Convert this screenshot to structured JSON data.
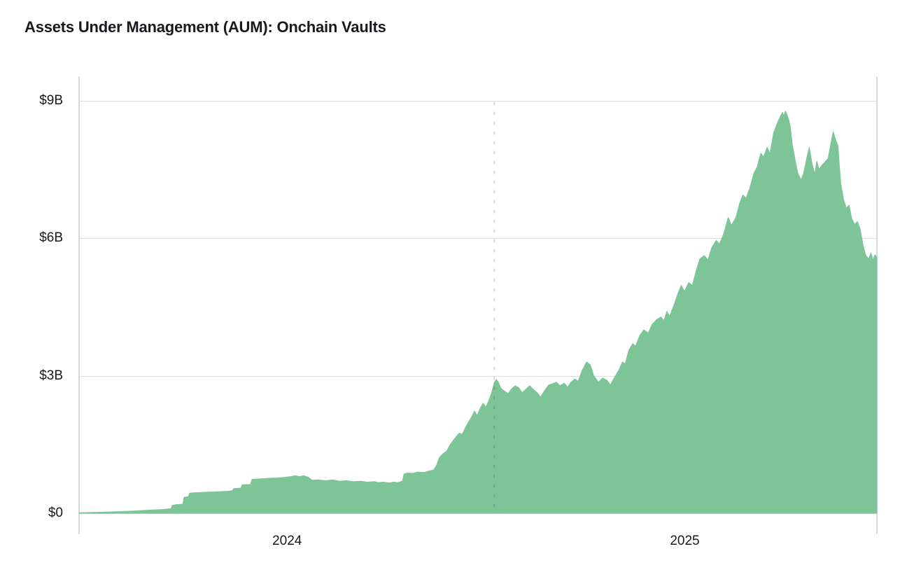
{
  "chart_data": {
    "type": "area",
    "title": "Assets Under Management (AUM): Onchain Vaults",
    "unit": "USD billions",
    "grid": "horizontal",
    "legend": "none",
    "x_axis": {
      "type": "time-decimal-years",
      "domain": [
        2023.977,
        2025.983
      ],
      "tick_labels": [
        "2024",
        "2025"
      ],
      "tick_positions": [
        2024.5,
        2025.5
      ]
    },
    "y_axis": {
      "domain": [
        0,
        9
      ],
      "tick_labels": [
        "$0",
        "$3B",
        "$6B",
        "$9B"
      ],
      "tick_values": [
        0,
        3,
        6,
        9
      ]
    },
    "reference_line": {
      "x": 2025.021,
      "style": "dashed-vertical"
    },
    "colors": {
      "area_fill": "#7dc497",
      "grid_line": "#dcdee0",
      "axis_line": "#d7d9db",
      "reference_line": "rgba(60,72,66,0.25)",
      "text": "#17191c"
    },
    "series": [
      {
        "name": "AUM",
        "points": [
          [
            2023.977,
            0.01
          ],
          [
            2024.012,
            0.02
          ],
          [
            2024.06,
            0.03
          ],
          [
            2024.113,
            0.05
          ],
          [
            2024.157,
            0.07
          ],
          [
            2024.183,
            0.08
          ],
          [
            2024.208,
            0.1
          ],
          [
            2024.211,
            0.17
          ],
          [
            2024.222,
            0.19
          ],
          [
            2024.238,
            0.2
          ],
          [
            2024.241,
            0.35
          ],
          [
            2024.252,
            0.36
          ],
          [
            2024.255,
            0.44
          ],
          [
            2024.271,
            0.45
          ],
          [
            2024.297,
            0.46
          ],
          [
            2024.324,
            0.47
          ],
          [
            2024.35,
            0.48
          ],
          [
            2024.362,
            0.49
          ],
          [
            2024.366,
            0.54
          ],
          [
            2024.384,
            0.55
          ],
          [
            2024.387,
            0.62
          ],
          [
            2024.408,
            0.63
          ],
          [
            2024.412,
            0.74
          ],
          [
            2024.429,
            0.75
          ],
          [
            2024.447,
            0.76
          ],
          [
            2024.473,
            0.77
          ],
          [
            2024.491,
            0.78
          ],
          [
            2024.509,
            0.8
          ],
          [
            2024.521,
            0.82
          ],
          [
            2024.531,
            0.8
          ],
          [
            2024.542,
            0.82
          ],
          [
            2024.553,
            0.79
          ],
          [
            2024.563,
            0.72
          ],
          [
            2024.579,
            0.73
          ],
          [
            2024.597,
            0.71
          ],
          [
            2024.614,
            0.73
          ],
          [
            2024.632,
            0.7
          ],
          [
            2024.649,
            0.71
          ],
          [
            2024.667,
            0.69
          ],
          [
            2024.685,
            0.7
          ],
          [
            2024.702,
            0.68
          ],
          [
            2024.72,
            0.69
          ],
          [
            2024.729,
            0.67
          ],
          [
            2024.743,
            0.68
          ],
          [
            2024.757,
            0.66
          ],
          [
            2024.767,
            0.68
          ],
          [
            2024.778,
            0.67
          ],
          [
            2024.79,
            0.7
          ],
          [
            2024.794,
            0.86
          ],
          [
            2024.804,
            0.88
          ],
          [
            2024.817,
            0.87
          ],
          [
            2024.829,
            0.9
          ],
          [
            2024.843,
            0.89
          ],
          [
            2024.857,
            0.92
          ],
          [
            2024.869,
            0.95
          ],
          [
            2024.876,
            1.05
          ],
          [
            2024.883,
            1.22
          ],
          [
            2024.892,
            1.3
          ],
          [
            2024.901,
            1.35
          ],
          [
            2024.91,
            1.5
          ],
          [
            2024.919,
            1.6
          ],
          [
            2024.926,
            1.68
          ],
          [
            2024.933,
            1.75
          ],
          [
            2024.94,
            1.72
          ],
          [
            2024.949,
            1.88
          ],
          [
            2024.957,
            2.0
          ],
          [
            2024.964,
            2.1
          ],
          [
            2024.971,
            2.23
          ],
          [
            2024.978,
            2.13
          ],
          [
            2024.986,
            2.3
          ],
          [
            2024.993,
            2.4
          ],
          [
            2025.0,
            2.32
          ],
          [
            2025.007,
            2.45
          ],
          [
            2025.014,
            2.62
          ],
          [
            2025.021,
            2.85
          ],
          [
            2025.026,
            2.92
          ],
          [
            2025.031,
            2.86
          ],
          [
            2025.038,
            2.72
          ],
          [
            2025.047,
            2.66
          ],
          [
            2025.056,
            2.61
          ],
          [
            2025.065,
            2.72
          ],
          [
            2025.074,
            2.78
          ],
          [
            2025.082,
            2.74
          ],
          [
            2025.091,
            2.63
          ],
          [
            2025.1,
            2.7
          ],
          [
            2025.11,
            2.78
          ],
          [
            2025.119,
            2.7
          ],
          [
            2025.13,
            2.62
          ],
          [
            2025.137,
            2.53
          ],
          [
            2025.147,
            2.67
          ],
          [
            2025.158,
            2.8
          ],
          [
            2025.169,
            2.83
          ],
          [
            2025.177,
            2.86
          ],
          [
            2025.186,
            2.78
          ],
          [
            2025.197,
            2.84
          ],
          [
            2025.205,
            2.75
          ],
          [
            2025.214,
            2.86
          ],
          [
            2025.223,
            2.93
          ],
          [
            2025.232,
            2.88
          ],
          [
            2025.241,
            3.1
          ],
          [
            2025.253,
            3.3
          ],
          [
            2025.262,
            3.24
          ],
          [
            2025.271,
            3.0
          ],
          [
            2025.283,
            2.86
          ],
          [
            2025.293,
            2.95
          ],
          [
            2025.304,
            2.9
          ],
          [
            2025.313,
            2.8
          ],
          [
            2025.323,
            2.96
          ],
          [
            2025.334,
            3.12
          ],
          [
            2025.343,
            3.3
          ],
          [
            2025.35,
            3.26
          ],
          [
            2025.359,
            3.55
          ],
          [
            2025.369,
            3.7
          ],
          [
            2025.376,
            3.64
          ],
          [
            2025.387,
            3.88
          ],
          [
            2025.397,
            4.0
          ],
          [
            2025.408,
            3.93
          ],
          [
            2025.418,
            4.12
          ],
          [
            2025.429,
            4.22
          ],
          [
            2025.44,
            4.28
          ],
          [
            2025.447,
            4.2
          ],
          [
            2025.455,
            4.4
          ],
          [
            2025.462,
            4.3
          ],
          [
            2025.473,
            4.55
          ],
          [
            2025.484,
            4.82
          ],
          [
            2025.491,
            4.97
          ],
          [
            2025.499,
            4.84
          ],
          [
            2025.51,
            5.03
          ],
          [
            2025.519,
            4.97
          ],
          [
            2025.529,
            5.3
          ],
          [
            2025.538,
            5.55
          ],
          [
            2025.549,
            5.62
          ],
          [
            2025.558,
            5.52
          ],
          [
            2025.568,
            5.8
          ],
          [
            2025.579,
            5.95
          ],
          [
            2025.587,
            5.87
          ],
          [
            2025.598,
            6.1
          ],
          [
            2025.609,
            6.45
          ],
          [
            2025.617,
            6.28
          ],
          [
            2025.628,
            6.44
          ],
          [
            2025.638,
            6.76
          ],
          [
            2025.646,
            6.94
          ],
          [
            2025.654,
            6.87
          ],
          [
            2025.663,
            7.08
          ],
          [
            2025.674,
            7.42
          ],
          [
            2025.682,
            7.55
          ],
          [
            2025.691,
            7.85
          ],
          [
            2025.698,
            7.77
          ],
          [
            2025.707,
            7.98
          ],
          [
            2025.714,
            7.84
          ],
          [
            2025.723,
            8.28
          ],
          [
            2025.732,
            8.5
          ],
          [
            2025.741,
            8.67
          ],
          [
            2025.746,
            8.74
          ],
          [
            2025.749,
            8.66
          ],
          [
            2025.753,
            8.77
          ],
          [
            2025.76,
            8.62
          ],
          [
            2025.765,
            8.45
          ],
          [
            2025.77,
            8.05
          ],
          [
            2025.778,
            7.68
          ],
          [
            2025.784,
            7.42
          ],
          [
            2025.792,
            7.27
          ],
          [
            2025.799,
            7.42
          ],
          [
            2025.806,
            7.72
          ],
          [
            2025.813,
            7.98
          ],
          [
            2025.82,
            7.62
          ],
          [
            2025.827,
            7.4
          ],
          [
            2025.832,
            7.68
          ],
          [
            2025.837,
            7.5
          ],
          [
            2025.844,
            7.58
          ],
          [
            2025.851,
            7.65
          ],
          [
            2025.86,
            7.73
          ],
          [
            2025.867,
            8.05
          ],
          [
            2025.873,
            8.32
          ],
          [
            2025.88,
            8.12
          ],
          [
            2025.885,
            8.02
          ],
          [
            2025.892,
            7.2
          ],
          [
            2025.899,
            6.85
          ],
          [
            2025.906,
            6.65
          ],
          [
            2025.913,
            6.72
          ],
          [
            2025.92,
            6.42
          ],
          [
            2025.927,
            6.3
          ],
          [
            2025.934,
            6.36
          ],
          [
            2025.941,
            6.2
          ],
          [
            2025.948,
            5.85
          ],
          [
            2025.955,
            5.62
          ],
          [
            2025.962,
            5.55
          ],
          [
            2025.968,
            5.68
          ],
          [
            2025.973,
            5.52
          ],
          [
            2025.978,
            5.64
          ],
          [
            2025.983,
            5.57
          ]
        ]
      }
    ]
  }
}
